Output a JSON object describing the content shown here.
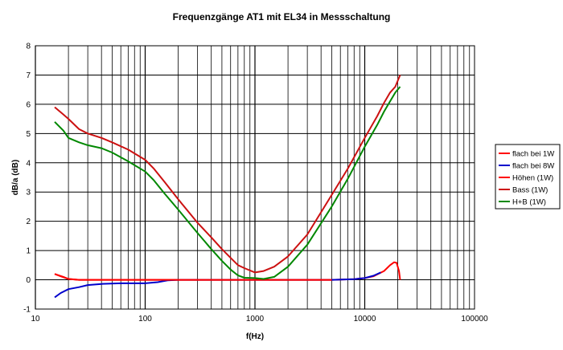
{
  "chart_data": {
    "type": "line",
    "title": "Frequenzgänge AT1 mit EL34 in Messschaltung",
    "xlabel": "f(Hz)",
    "ylabel": "dB/a (dB)",
    "x_scale": "log",
    "xlim": [
      10,
      100000
    ],
    "ylim": [
      -1,
      8
    ],
    "x_ticks": [
      "10",
      "100",
      "1000",
      "10000",
      "100000"
    ],
    "y_ticks": [
      "-1",
      "0",
      "1",
      "2",
      "3",
      "4",
      "5",
      "6",
      "7",
      "8"
    ],
    "grid": true,
    "legend_position": "right",
    "series": [
      {
        "name": "flach bei 1W",
        "color": "#ff0000",
        "points": [
          [
            15,
            0.2
          ],
          [
            17,
            0.12
          ],
          [
            20,
            0.03
          ],
          [
            25,
            0.0
          ],
          [
            50,
            0.0
          ],
          [
            100,
            0.0
          ],
          [
            500,
            0.0
          ],
          [
            1000,
            0.0
          ],
          [
            5000,
            0.0
          ],
          [
            8000,
            0.02
          ],
          [
            10000,
            0.06
          ],
          [
            12000,
            0.12
          ],
          [
            15000,
            0.3
          ],
          [
            17000,
            0.5
          ],
          [
            18500,
            0.6
          ],
          [
            19500,
            0.58
          ],
          [
            20500,
            0.3
          ],
          [
            21000,
            0.0
          ]
        ]
      },
      {
        "name": "flach bei 8W",
        "color": "#0000cc",
        "points": [
          [
            15,
            -0.6
          ],
          [
            17,
            -0.45
          ],
          [
            20,
            -0.32
          ],
          [
            25,
            -0.25
          ],
          [
            30,
            -0.18
          ],
          [
            40,
            -0.14
          ],
          [
            60,
            -0.12
          ],
          [
            100,
            -0.12
          ],
          [
            130,
            -0.08
          ],
          [
            160,
            -0.02
          ],
          [
            200,
            0.0
          ],
          [
            1000,
            0.0
          ],
          [
            5000,
            0.0
          ],
          [
            8000,
            0.02
          ],
          [
            10000,
            0.06
          ],
          [
            12000,
            0.14
          ],
          [
            14000,
            0.25
          ]
        ]
      },
      {
        "name": "Höhen  (1W)",
        "color": "#ff0000",
        "points": [
          [
            15,
            0.2
          ],
          [
            18,
            0.1
          ],
          [
            20,
            0.03
          ],
          [
            25,
            0.0
          ],
          [
            100,
            0.0
          ],
          [
            1000,
            0.0
          ],
          [
            5000,
            0.0
          ]
        ]
      },
      {
        "name": "Bass  (1W)",
        "color": "#cc1111",
        "points": [
          [
            15,
            5.9
          ],
          [
            18,
            5.65
          ],
          [
            20,
            5.5
          ],
          [
            25,
            5.15
          ],
          [
            30,
            5.0
          ],
          [
            40,
            4.85
          ],
          [
            50,
            4.7
          ],
          [
            70,
            4.45
          ],
          [
            100,
            4.1
          ],
          [
            120,
            3.8
          ],
          [
            150,
            3.35
          ],
          [
            200,
            2.75
          ],
          [
            300,
            1.95
          ],
          [
            400,
            1.45
          ],
          [
            500,
            1.05
          ],
          [
            600,
            0.75
          ],
          [
            700,
            0.5
          ],
          [
            800,
            0.4
          ],
          [
            1000,
            0.25
          ],
          [
            1200,
            0.3
          ],
          [
            1500,
            0.45
          ],
          [
            2000,
            0.8
          ],
          [
            3000,
            1.55
          ],
          [
            5000,
            2.9
          ],
          [
            7000,
            3.8
          ],
          [
            10000,
            4.85
          ],
          [
            13000,
            5.6
          ],
          [
            15000,
            6.05
          ],
          [
            17000,
            6.4
          ],
          [
            19000,
            6.6
          ],
          [
            21000,
            7.0
          ]
        ]
      },
      {
        "name": "H+B  (1W)",
        "color": "#008800",
        "points": [
          [
            15,
            5.4
          ],
          [
            18,
            5.1
          ],
          [
            20,
            4.85
          ],
          [
            25,
            4.7
          ],
          [
            30,
            4.6
          ],
          [
            40,
            4.5
          ],
          [
            50,
            4.35
          ],
          [
            70,
            4.05
          ],
          [
            100,
            3.7
          ],
          [
            120,
            3.4
          ],
          [
            150,
            2.95
          ],
          [
            200,
            2.4
          ],
          [
            300,
            1.6
          ],
          [
            400,
            1.05
          ],
          [
            500,
            0.65
          ],
          [
            600,
            0.35
          ],
          [
            700,
            0.15
          ],
          [
            800,
            0.07
          ],
          [
            1000,
            0.06
          ],
          [
            1200,
            0.03
          ],
          [
            1500,
            0.1
          ],
          [
            2000,
            0.45
          ],
          [
            3000,
            1.2
          ],
          [
            5000,
            2.5
          ],
          [
            7000,
            3.45
          ],
          [
            10000,
            4.55
          ],
          [
            13000,
            5.3
          ],
          [
            15000,
            5.75
          ],
          [
            17000,
            6.1
          ],
          [
            19000,
            6.4
          ],
          [
            21000,
            6.6
          ]
        ]
      }
    ]
  }
}
